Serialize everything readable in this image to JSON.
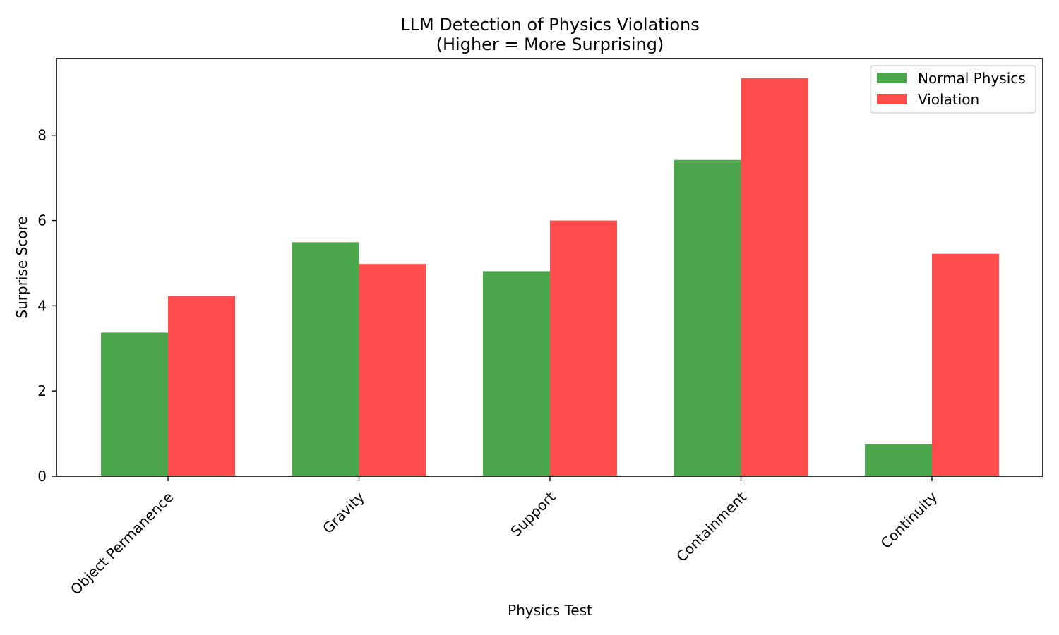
{
  "chart_data": {
    "type": "bar",
    "title": "LLM Detection of Physics Violations",
    "subtitle": "(Higher = More Surprising)",
    "xlabel": "Physics Test",
    "ylabel": "Surprise Score",
    "categories": [
      "Object Permanence",
      "Gravity",
      "Support",
      "Containment",
      "Continuity"
    ],
    "series": [
      {
        "name": "Normal Physics",
        "color": "#4ca64c",
        "values": [
          3.37,
          5.49,
          4.81,
          7.42,
          0.75
        ]
      },
      {
        "name": "Violation",
        "color": "#ff4c4c",
        "values": [
          4.23,
          4.98,
          6.0,
          9.34,
          5.22
        ]
      }
    ],
    "ylim": [
      0,
      9.8
    ],
    "yticks": [
      0,
      2,
      4,
      6,
      8
    ],
    "grid": false,
    "legend_position": "top-right"
  }
}
